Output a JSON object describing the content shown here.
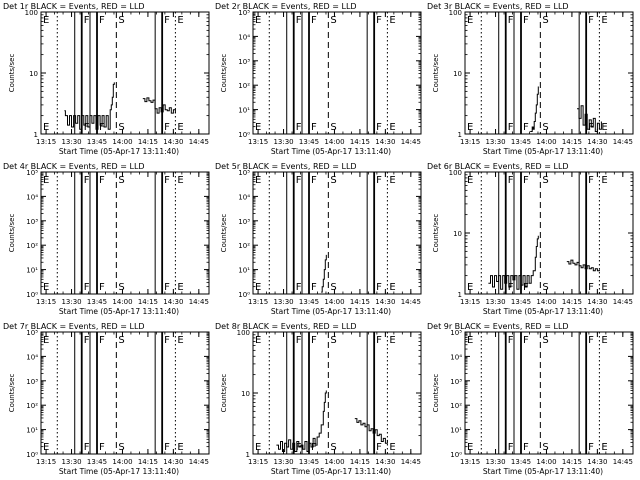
{
  "figure": {
    "xlabel": "Start Time (05-Apr-17 13:11:40)",
    "ylabel": "Counts/sec",
    "x_ticks": [
      "13:15",
      "13:30",
      "13:45",
      "14:00",
      "14:15",
      "14:30",
      "14:45"
    ],
    "colors": {
      "events": "#000000",
      "lld": "#ff0000",
      "background": "#ffffff"
    }
  },
  "chart_data": [
    {
      "type": "line",
      "title": "Det 1r BLACK = Events, RED = LLD",
      "y_scale": "log",
      "ylim": [
        1,
        100
      ],
      "y_ticks": [
        "1",
        "10",
        "100"
      ],
      "markers": [
        [
          "E",
          13.36
        ],
        [
          "F",
          13.6
        ],
        [
          "F",
          13.75
        ],
        [
          "S",
          13.94
        ],
        [
          "F",
          14.39
        ],
        [
          "E",
          14.52
        ]
      ],
      "series": [
        {
          "color": "#000000",
          "x": [
            13.43,
            13.44,
            13.46,
            13.48,
            13.5,
            13.52,
            13.54,
            13.56,
            13.58,
            13.6,
            13.62,
            13.64,
            13.66,
            13.68,
            13.7,
            13.72,
            13.74,
            13.76,
            13.78,
            13.8,
            13.82,
            13.84,
            13.86,
            13.88,
            13.89,
            13.9,
            13.91,
            13.92
          ],
          "y": [
            2.4,
            2,
            1.4,
            2,
            1.3,
            2,
            1.5,
            2,
            1.2,
            2,
            1.4,
            2,
            1.3,
            2,
            1.5,
            2,
            1.2,
            2,
            1.4,
            2,
            1.3,
            2,
            1.2,
            2.5,
            3,
            4,
            6.5,
            7
          ]
        },
        {
          "color": "#000000",
          "x": [
            14.2,
            14.22,
            14.24,
            14.26,
            14.28,
            14.3,
            14.32,
            14.34,
            14.36,
            14.38,
            14.4,
            14.42,
            14.44,
            14.46,
            14.48,
            14.5,
            14.52
          ],
          "y": [
            3.8,
            3.4,
            3.9,
            3.5,
            3.3,
            3.6,
            2.6,
            2.2,
            2.7,
            2.3,
            3,
            2.5,
            2.4,
            2.7,
            2.2,
            2.5,
            2.2
          ]
        }
      ]
    },
    {
      "type": "line",
      "title": "Det 2r BLACK = Events, RED = LLD",
      "y_scale": "log",
      "ylim": [
        1,
        100000
      ],
      "y_ticks": [
        "10⁰",
        "10¹",
        "10²",
        "10³",
        "10⁴",
        "10⁵"
      ],
      "markers": [
        [
          "E",
          13.36
        ],
        [
          "F",
          13.6
        ],
        [
          "F",
          13.75
        ],
        [
          "S",
          13.94
        ],
        [
          "F",
          14.39
        ],
        [
          "E",
          14.52
        ]
      ],
      "series": []
    },
    {
      "type": "line",
      "title": "Det 3r BLACK = Events, RED = LLD",
      "y_scale": "log",
      "ylim": [
        1,
        100
      ],
      "y_ticks": [
        "1",
        "10",
        "100"
      ],
      "markers": [
        [
          "E",
          13.36
        ],
        [
          "F",
          13.6
        ],
        [
          "F",
          13.75
        ],
        [
          "S",
          13.94
        ],
        [
          "F",
          14.39
        ],
        [
          "E",
          14.52
        ]
      ],
      "series": [
        {
          "color": "#000000",
          "x": [
            13.84,
            13.86,
            13.87,
            13.88,
            13.89,
            13.9,
            13.91,
            13.92
          ],
          "y": [
            1.1,
            1.3,
            1.2,
            1.6,
            2.2,
            3,
            4.5,
            6
          ]
        },
        {
          "color": "#000000",
          "x": [
            14.3,
            14.32,
            14.34,
            14.36,
            14.38,
            14.4,
            14.42,
            14.44,
            14.46,
            14.48,
            14.5,
            14.52,
            14.54
          ],
          "y": [
            2.6,
            1.8,
            2.9,
            1.4,
            2.1,
            1.2,
            1.7,
            1.3,
            1.8,
            1.1,
            1.5,
            1.2,
            1.6
          ]
        }
      ]
    },
    {
      "type": "line",
      "title": "Det 4r BLACK = Events, RED = LLD",
      "y_scale": "log",
      "ylim": [
        1,
        100000
      ],
      "y_ticks": [
        "10⁰",
        "10¹",
        "10²",
        "10³",
        "10⁴",
        "10⁵"
      ],
      "markers": [
        [
          "E",
          13.36
        ],
        [
          "F",
          13.6
        ],
        [
          "F",
          13.75
        ],
        [
          "S",
          13.94
        ],
        [
          "F",
          14.39
        ],
        [
          "E",
          14.52
        ]
      ],
      "series": []
    },
    {
      "type": "line",
      "title": "Det 5r BLACK = Events, RED = LLD",
      "y_scale": "log",
      "ylim": [
        1,
        100000
      ],
      "y_ticks": [
        "10⁰",
        "10¹",
        "10²",
        "10³",
        "10⁴",
        "10⁵"
      ],
      "markers": [
        [
          "E",
          13.36
        ],
        [
          "F",
          13.6
        ],
        [
          "F",
          13.75
        ],
        [
          "S",
          13.94
        ],
        [
          "F",
          14.39
        ],
        [
          "E",
          14.52
        ]
      ],
      "series": [
        {
          "color": "#000000",
          "x": [
            13.87,
            13.88,
            13.89,
            13.9,
            13.91,
            13.92
          ],
          "y": [
            1.2,
            2,
            4,
            10,
            25,
            40
          ]
        }
      ]
    },
    {
      "type": "line",
      "title": "Det 6r BLACK = Events, RED = LLD",
      "y_scale": "log",
      "ylim": [
        1,
        100
      ],
      "y_ticks": [
        "1",
        "10",
        "100"
      ],
      "markers": [
        [
          "E",
          13.36
        ],
        [
          "F",
          13.6
        ],
        [
          "F",
          13.75
        ],
        [
          "S",
          13.94
        ],
        [
          "F",
          14.39
        ],
        [
          "E",
          14.52
        ]
      ],
      "series": [
        {
          "color": "#000000",
          "x": [
            13.43,
            13.45,
            13.47,
            13.49,
            13.51,
            13.53,
            13.55,
            13.57,
            13.59,
            13.61,
            13.63,
            13.65,
            13.67,
            13.69,
            13.71,
            13.73,
            13.75,
            13.77,
            13.79,
            13.81,
            13.83,
            13.85,
            13.87,
            13.89,
            13.9,
            13.91,
            13.92
          ],
          "y": [
            1.5,
            2,
            1.3,
            2,
            1.6,
            2,
            1.2,
            2,
            1.5,
            2,
            1.3,
            2,
            1.7,
            2,
            1.2,
            2,
            1.4,
            2,
            1.3,
            2,
            1.5,
            2,
            2.4,
            4,
            6,
            8,
            9
          ]
        },
        {
          "color": "#000000",
          "x": [
            14.2,
            14.22,
            14.24,
            14.26,
            14.28,
            14.3,
            14.32,
            14.34,
            14.36,
            14.38,
            14.4,
            14.42,
            14.44,
            14.46,
            14.48,
            14.5,
            14.52
          ],
          "y": [
            3.4,
            3.1,
            3.6,
            3.2,
            3,
            3.3,
            2.9,
            2.7,
            3,
            2.6,
            2.9,
            2.6,
            2.7,
            2.4,
            2.6,
            2.4,
            2.5
          ]
        }
      ]
    },
    {
      "type": "line",
      "title": "Det 7r BLACK = Events, RED = LLD",
      "y_scale": "log",
      "ylim": [
        1,
        100000
      ],
      "y_ticks": [
        "10⁰",
        "10¹",
        "10²",
        "10³",
        "10⁴",
        "10⁵"
      ],
      "markers": [
        [
          "E",
          13.36
        ],
        [
          "F",
          13.6
        ],
        [
          "F",
          13.75
        ],
        [
          "S",
          13.94
        ],
        [
          "F",
          14.39
        ],
        [
          "E",
          14.52
        ]
      ],
      "series": []
    },
    {
      "type": "line",
      "title": "Det 8r BLACK = Events, RED = LLD",
      "y_scale": "log",
      "ylim": [
        1,
        100
      ],
      "y_ticks": [
        "1",
        "10",
        "100"
      ],
      "markers": [
        [
          "E",
          13.36
        ],
        [
          "F",
          13.6
        ],
        [
          "F",
          13.75
        ],
        [
          "S",
          13.94
        ],
        [
          "F",
          14.39
        ],
        [
          "E",
          14.52
        ]
      ],
      "series": [
        {
          "color": "#000000",
          "x": [
            13.43,
            13.45,
            13.47,
            13.49,
            13.51,
            13.53,
            13.55,
            13.57,
            13.59,
            13.61,
            13.63,
            13.65,
            13.67,
            13.69,
            13.71,
            13.73,
            13.75,
            13.77,
            13.79,
            13.81,
            13.83,
            13.85,
            13.87,
            13.89,
            13.9,
            13.91,
            13.92
          ],
          "y": [
            1.4,
            1.2,
            1.6,
            1.1,
            1.5,
            1.3,
            1.7,
            1.2,
            1.5,
            1.1,
            1.6,
            1.3,
            1.4,
            1.2,
            1.6,
            1.1,
            1.5,
            1.3,
            1.8,
            1.4,
            1.9,
            2.2,
            3,
            5,
            7,
            10,
            11
          ]
        },
        {
          "color": "#000000",
          "x": [
            14.2,
            14.22,
            14.24,
            14.26,
            14.28,
            14.3,
            14.32,
            14.34,
            14.36,
            14.38,
            14.4,
            14.42,
            14.44,
            14.46,
            14.48,
            14.5,
            14.52
          ],
          "y": [
            3.8,
            3.3,
            3.5,
            3,
            3.2,
            2.8,
            3,
            2.4,
            2.6,
            2.2,
            2.5,
            2,
            2.1,
            1.6,
            1.8,
            1.5,
            1.7
          ]
        }
      ]
    },
    {
      "type": "line",
      "title": "Det 9r BLACK = Events, RED = LLD",
      "y_scale": "log",
      "ylim": [
        1,
        100000
      ],
      "y_ticks": [
        "10⁰",
        "10¹",
        "10²",
        "10³",
        "10⁴",
        "10⁵"
      ],
      "markers": [
        [
          "E",
          13.36
        ],
        [
          "F",
          13.6
        ],
        [
          "F",
          13.75
        ],
        [
          "S",
          13.94
        ],
        [
          "F",
          14.39
        ],
        [
          "E",
          14.52
        ]
      ],
      "series": []
    }
  ]
}
